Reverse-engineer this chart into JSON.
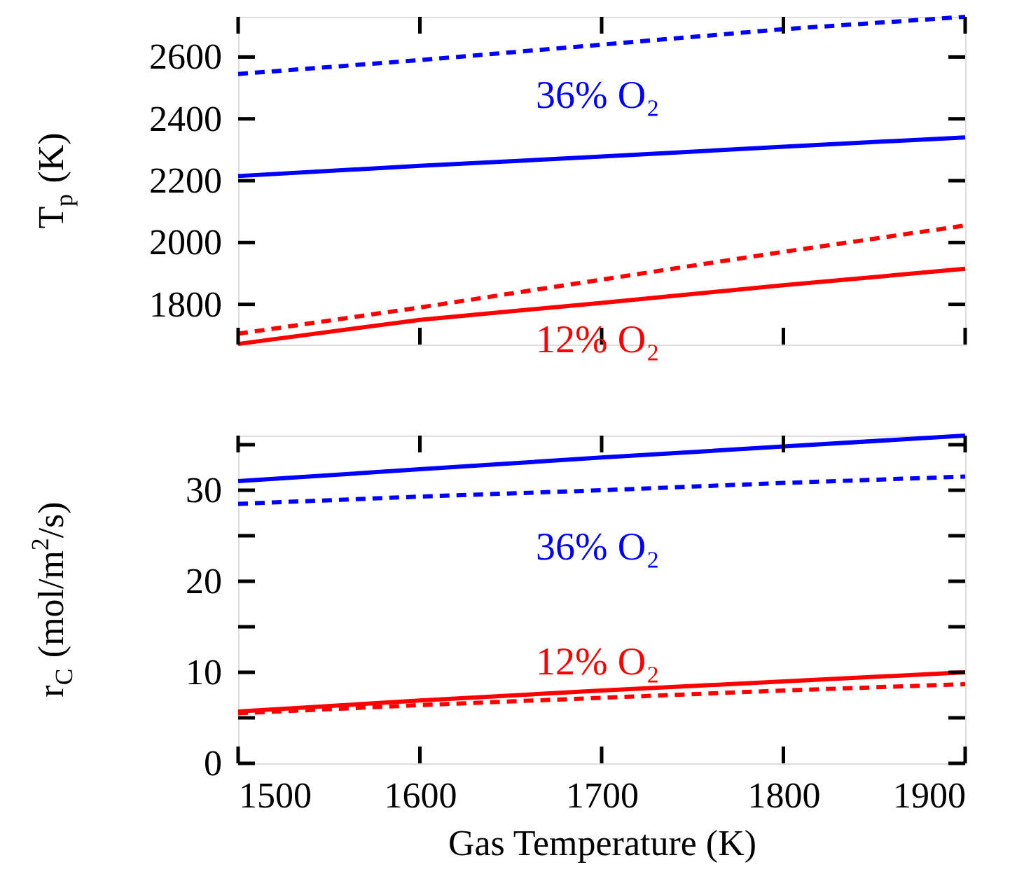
{
  "chart_data": [
    {
      "type": "line",
      "ylabel": "T$_{p}$ (K)",
      "x": [
        1500,
        1600,
        1700,
        1800,
        1900
      ],
      "xlim": [
        1500,
        1900
      ],
      "xticks": [
        1500,
        1600,
        1700,
        1800,
        1900
      ],
      "ylim": [
        1670,
        2730
      ],
      "yticks": [
        1800,
        2000,
        2200,
        2400,
        2600
      ],
      "tick_labels": "y",
      "grid": false,
      "series": [
        {
          "color": "#0000ff",
          "line_style": "dashed",
          "values": [
            2545,
            2590,
            2640,
            2690,
            2730
          ]
        },
        {
          "color": "#0000ff",
          "line_style": "solid",
          "values": [
            2215,
            2248,
            2278,
            2310,
            2340
          ]
        },
        {
          "color": "#ff0000",
          "line_style": "dashed",
          "values": [
            1705,
            1790,
            1880,
            1970,
            2055
          ]
        },
        {
          "color": "#ff0000",
          "line_style": "solid",
          "values": [
            1672,
            1750,
            1805,
            1862,
            1915
          ]
        }
      ],
      "annotations": [
        "36% O₂",
        "12% O₂"
      ]
    },
    {
      "type": "line",
      "ylabel": "r$_{C}$ (mol/m$^{2}$/s)",
      "xlabel": "Gas Temperature (K)",
      "x": [
        1500,
        1600,
        1700,
        1800,
        1900
      ],
      "xlim": [
        1500,
        1900
      ],
      "xticks": [
        1500,
        1600,
        1700,
        1800,
        1900
      ],
      "ylim": [
        0,
        36
      ],
      "yticks": [
        0,
        {
          "value": 5,
          "label": null
        },
        10,
        {
          "value": 15,
          "label": null
        },
        20,
        {
          "value": 25,
          "label": null
        },
        30,
        {
          "value": 35,
          "label": null
        }
      ],
      "grid": false,
      "series": [
        {
          "color": "#0000ff",
          "line_style": "solid",
          "values": [
            31,
            32.3,
            33.6,
            34.8,
            36
          ]
        },
        {
          "color": "#0000ff",
          "line_style": "dashed",
          "values": [
            28.5,
            29.3,
            30,
            30.8,
            31.5
          ]
        },
        {
          "color": "#ff0000",
          "line_style": "solid",
          "values": [
            5.7,
            6.9,
            8,
            9,
            10
          ]
        },
        {
          "color": "#ff0000",
          "line_style": "dashed",
          "values": [
            5.5,
            6.4,
            7.2,
            8,
            8.7
          ]
        }
      ],
      "annotations": [
        "36% O₂",
        "12% O₂"
      ]
    }
  ]
}
